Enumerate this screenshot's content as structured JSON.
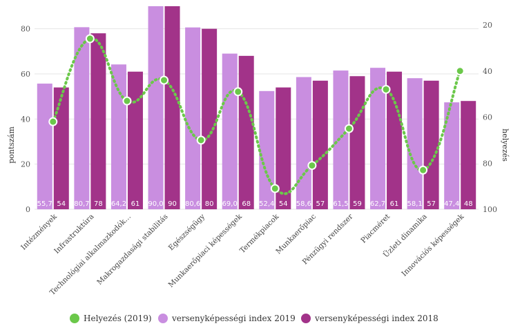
{
  "chart_data": {
    "type": "bar",
    "categories": [
      "Intézmények",
      "Infrastruktúra",
      "Technológiai alkalmazkodók…",
      "Makrogazdasági stabilitás",
      "Egészségügy",
      "Munkaerőpiaci képességek",
      "Termékpiacok",
      "Munkaerőpiac",
      "Pénzügyi rendszer",
      "Piacméret",
      "Üzleti dinamika",
      "Innovációs képességek"
    ],
    "series": [
      {
        "name": "versenyképességi index 2019",
        "color": "#c98ee0",
        "values": [
          55.7,
          80.7,
          64.2,
          90.0,
          80.6,
          69.0,
          52.4,
          58.6,
          61.5,
          62.7,
          58.1,
          47.4
        ],
        "labels": [
          "55,7",
          "80,7",
          "64,2",
          "90,0",
          "80,6",
          "69,0",
          "52,4",
          "58,6",
          "61,5",
          "62,7",
          "58,1",
          "47,4"
        ]
      },
      {
        "name": "versenyképességi index 2018",
        "color": "#a23389",
        "values": [
          54,
          78,
          61,
          90,
          80,
          68,
          54,
          57,
          59,
          61,
          57,
          48
        ],
        "labels": [
          "54",
          "78",
          "61",
          "90",
          "80",
          "68",
          "54",
          "57",
          "59",
          "61",
          "57",
          "48"
        ]
      },
      {
        "name": "Helyezés (2019)",
        "color": "#6bc84a",
        "axis": "right",
        "style": "dotted-spline",
        "values": [
          62,
          26,
          53,
          44,
          70,
          49,
          91,
          81,
          65,
          48,
          83,
          40
        ]
      }
    ],
    "ylabel": "pontszám",
    "y2label": "helyezés",
    "ylim": [
      0,
      90
    ],
    "y2lim": [
      100,
      20
    ],
    "yticks": [
      "0",
      "20",
      "40",
      "60",
      "80"
    ],
    "y2ticks": [
      "100",
      "80",
      "60",
      "40",
      "20"
    ],
    "grid": true,
    "legend": "bottom",
    "legend_order": [
      "Helyezés (2019)",
      "versenyképességi index 2019",
      "versenyképességi index 2018"
    ]
  }
}
